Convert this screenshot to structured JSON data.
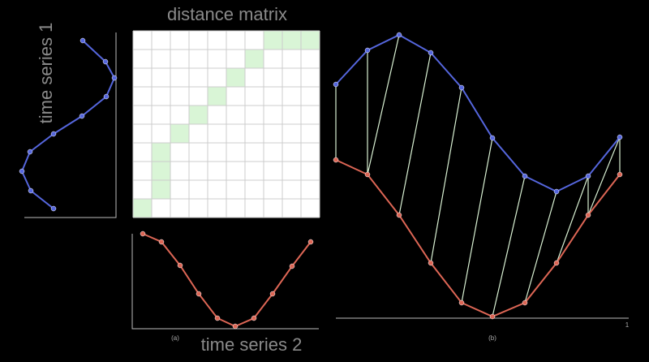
{
  "title": "distance matrix",
  "series_1_label": "time series 1",
  "series_2_label": "time series 2",
  "panel_a": "(a)",
  "panel_b": "(b)",
  "axis_end": "1"
}
